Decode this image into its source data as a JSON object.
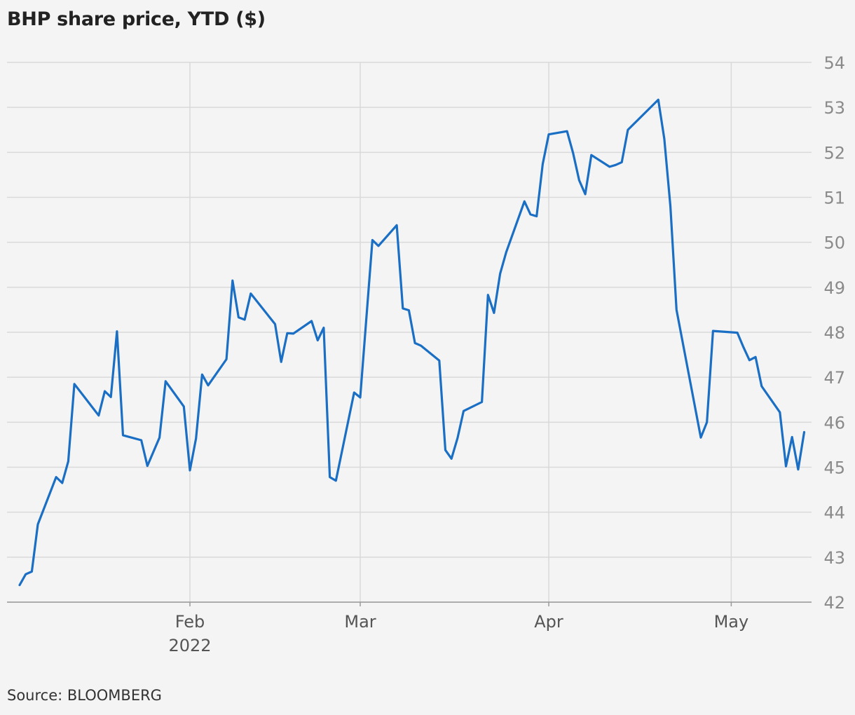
{
  "title": "BHP share price, YTD ($)",
  "source": "Source: BLOOMBERG",
  "chart_data": {
    "type": "line",
    "title": "BHP share price, YTD ($)",
    "xlabel": "",
    "ylabel": "",
    "ylim": [
      42,
      54
    ],
    "xlim": [
      "2022-01-04",
      "2022-05-13"
    ],
    "y_ticks": [
      42,
      43,
      44,
      45,
      46,
      47,
      48,
      49,
      50,
      51,
      52,
      53,
      54
    ],
    "x_ticks": [
      {
        "date": "2022-02-01",
        "label": "Feb",
        "sublabel": "2022"
      },
      {
        "date": "2022-03-01",
        "label": "Mar",
        "sublabel": ""
      },
      {
        "date": "2022-04-01",
        "label": "Apr",
        "sublabel": ""
      },
      {
        "date": "2022-05-01",
        "label": "May",
        "sublabel": ""
      }
    ],
    "y_axis_position": "right",
    "grid": true,
    "line_color": "#1a6fc4",
    "series": [
      {
        "values": [
          [
            "2022-01-04",
            42.38
          ],
          [
            "2022-01-05",
            42.62
          ],
          [
            "2022-01-06",
            42.68
          ],
          [
            "2022-01-07",
            43.73
          ],
          [
            "2022-01-10",
            44.78
          ],
          [
            "2022-01-11",
            44.65
          ],
          [
            "2022-01-12",
            45.13
          ],
          [
            "2022-01-13",
            46.85
          ],
          [
            "2022-01-17",
            46.15
          ],
          [
            "2022-01-18",
            46.69
          ],
          [
            "2022-01-19",
            46.56
          ],
          [
            "2022-01-20",
            48.02
          ],
          [
            "2022-01-21",
            45.71
          ],
          [
            "2022-01-24",
            45.6
          ],
          [
            "2022-01-25",
            45.03
          ],
          [
            "2022-01-27",
            45.66
          ],
          [
            "2022-01-28",
            46.91
          ],
          [
            "2022-01-31",
            46.35
          ],
          [
            "2022-02-01",
            44.93
          ],
          [
            "2022-02-02",
            45.64
          ],
          [
            "2022-02-03",
            47.06
          ],
          [
            "2022-02-04",
            46.82
          ],
          [
            "2022-02-07",
            47.4
          ],
          [
            "2022-02-08",
            49.15
          ],
          [
            "2022-02-09",
            48.33
          ],
          [
            "2022-02-10",
            48.28
          ],
          [
            "2022-02-11",
            48.86
          ],
          [
            "2022-02-14",
            48.35
          ],
          [
            "2022-02-15",
            48.18
          ],
          [
            "2022-02-16",
            47.34
          ],
          [
            "2022-02-17",
            47.98
          ],
          [
            "2022-02-18",
            47.97
          ],
          [
            "2022-02-21",
            48.25
          ],
          [
            "2022-02-22",
            47.82
          ],
          [
            "2022-02-23",
            48.1
          ],
          [
            "2022-02-24",
            44.78
          ],
          [
            "2022-02-25",
            44.7
          ],
          [
            "2022-02-28",
            46.66
          ],
          [
            "2022-03-01",
            46.55
          ],
          [
            "2022-03-03",
            50.05
          ],
          [
            "2022-03-04",
            49.92
          ],
          [
            "2022-03-07",
            50.38
          ],
          [
            "2022-03-08",
            48.53
          ],
          [
            "2022-03-09",
            48.49
          ],
          [
            "2022-03-10",
            47.76
          ],
          [
            "2022-03-11",
            47.7
          ],
          [
            "2022-03-14",
            47.37
          ],
          [
            "2022-03-15",
            45.38
          ],
          [
            "2022-03-16",
            45.19
          ],
          [
            "2022-03-17",
            45.65
          ],
          [
            "2022-03-18",
            46.25
          ],
          [
            "2022-03-21",
            46.45
          ],
          [
            "2022-03-22",
            48.83
          ],
          [
            "2022-03-23",
            48.43
          ],
          [
            "2022-03-24",
            49.3
          ],
          [
            "2022-03-25",
            49.78
          ],
          [
            "2022-03-28",
            50.91
          ],
          [
            "2022-03-29",
            50.62
          ],
          [
            "2022-03-30",
            50.58
          ],
          [
            "2022-03-31",
            51.74
          ],
          [
            "2022-04-01",
            52.4
          ],
          [
            "2022-04-04",
            52.47
          ],
          [
            "2022-04-05",
            51.98
          ],
          [
            "2022-04-06",
            51.38
          ],
          [
            "2022-04-07",
            51.07
          ],
          [
            "2022-04-08",
            51.94
          ],
          [
            "2022-04-11",
            51.68
          ],
          [
            "2022-04-12",
            51.72
          ],
          [
            "2022-04-13",
            51.78
          ],
          [
            "2022-04-14",
            52.5
          ],
          [
            "2022-04-19",
            53.17
          ],
          [
            "2022-04-20",
            52.3
          ],
          [
            "2022-04-21",
            50.8
          ],
          [
            "2022-04-22",
            48.5
          ],
          [
            "2022-04-26",
            45.66
          ],
          [
            "2022-04-27",
            46.0
          ],
          [
            "2022-04-28",
            48.03
          ],
          [
            "2022-05-02",
            47.99
          ],
          [
            "2022-05-03",
            47.67
          ],
          [
            "2022-05-04",
            47.38
          ],
          [
            "2022-05-05",
            47.45
          ],
          [
            "2022-05-06",
            46.8
          ],
          [
            "2022-05-09",
            46.22
          ],
          [
            "2022-05-10",
            45.02
          ],
          [
            "2022-05-11",
            45.67
          ],
          [
            "2022-05-12",
            44.95
          ],
          [
            "2022-05-13",
            45.78
          ]
        ]
      }
    ]
  }
}
